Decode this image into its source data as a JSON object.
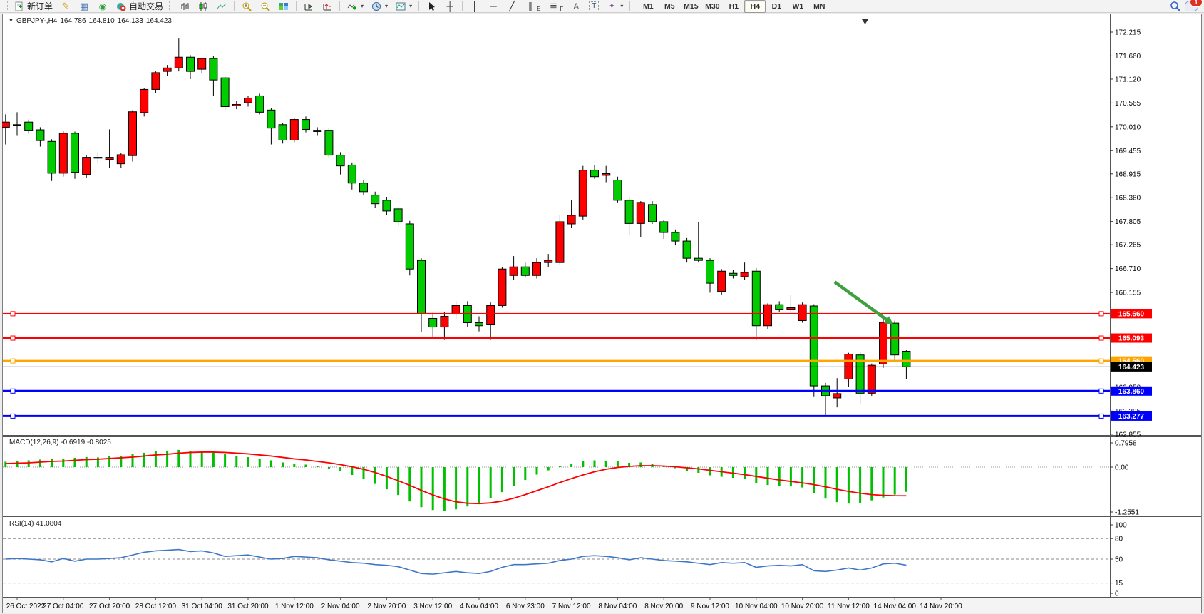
{
  "toolbar": {
    "new_order_label": "新订单",
    "auto_trading_label": "自动交易",
    "timeframe_buttons": [
      "M1",
      "M5",
      "M15",
      "M30",
      "H1",
      "H4",
      "D1",
      "W1",
      "MN"
    ],
    "active_timeframe": "H4",
    "notification_badge": "1"
  },
  "icons": {
    "symbol_dropdown": "▼",
    "crayon": "✎",
    "market_depth": "▦",
    "signals": "◉",
    "crosshair": "┼",
    "vertical_line": "│",
    "horizontal_line": "─",
    "trendline": "╱",
    "channel": "∥",
    "channel_sub": "E",
    "fibonacci": "≣",
    "fibonacci_sub": "F",
    "text_tool": "A",
    "label_tool": "T",
    "arrows_tool": "✦",
    "caret": "▾"
  },
  "chart_title": {
    "dropdown_marker": "▼",
    "symbol_period": "GBPJPY-,H4",
    "open": "164.786",
    "high": "164.810",
    "low": "164.133",
    "close": "164.423"
  },
  "panes": {
    "macd_label": "MACD(12,26,9) -0.6919 -0.8025",
    "rsi_label": "RSI(14) 41.0804"
  },
  "axes": {
    "price_ticks": [
      "172.215",
      "171.660",
      "171.120",
      "170.565",
      "170.010",
      "169.455",
      "168.915",
      "168.360",
      "167.805",
      "167.265",
      "166.710",
      "166.155",
      "163.950",
      "163.395",
      "162.855"
    ],
    "macd_ticks": [
      "0.7958",
      "0.00",
      "-1.2551"
    ],
    "rsi_ticks": [
      "100",
      "80",
      "50",
      "15",
      "0"
    ],
    "time_labels": [
      "26 Oct 2022",
      "27 Oct 04:00",
      "27 Oct 20:00",
      "28 Oct 12:00",
      "31 Oct 04:00",
      "31 Oct 20:00",
      "1 Nov 12:00",
      "2 Nov 04:00",
      "2 Nov 20:00",
      "3 Nov 12:00",
      "4 Nov 04:00",
      "6 Nov 23:00",
      "7 Nov 12:00",
      "8 Nov 04:00",
      "8 Nov 20:00",
      "9 Nov 12:00",
      "10 Nov 04:00",
      "10 Nov 20:00",
      "11 Nov 12:00",
      "14 Nov 04:00",
      "14 Nov 20:00"
    ]
  },
  "price_lines": [
    {
      "price": 165.66,
      "label": "165.660",
      "color": "#FF0000",
      "width": 2
    },
    {
      "price": 165.093,
      "label": "165.093",
      "color": "#FF0000",
      "width": 2
    },
    {
      "price": 164.56,
      "label": "164.560",
      "color": "#FFA500",
      "width": 3
    },
    {
      "price": 163.86,
      "label": "163.860",
      "color": "#0000FF",
      "width": 3
    },
    {
      "price": 163.277,
      "label": "163.277",
      "color": "#0000FF",
      "width": 3
    }
  ],
  "current_price_line": {
    "price": 164.423,
    "label": "164.423",
    "color": "#000000"
  },
  "annotations": {
    "down_arrow": {
      "from_index": 71.8,
      "from_price": 166.4,
      "to_index": 76.9,
      "to_price": 165.4,
      "color": "#3FA03F"
    }
  },
  "chart_data": {
    "type": "candlestick",
    "symbol": "GBPJPY-",
    "timeframe": "H4",
    "up_color": "#FF0000",
    "down_color": "#00CC00",
    "wick_color": "#000000",
    "price_range": [
      162.855,
      172.215
    ],
    "candles": [
      [
        170.0,
        170.3,
        169.6,
        170.12
      ],
      [
        170.05,
        170.35,
        169.8,
        170.06
      ],
      [
        170.12,
        170.18,
        169.85,
        169.93
      ],
      [
        169.94,
        170.0,
        169.55,
        169.69
      ],
      [
        169.67,
        169.72,
        168.75,
        168.93
      ],
      [
        168.93,
        169.92,
        168.85,
        169.86
      ],
      [
        169.86,
        169.9,
        168.8,
        168.95
      ],
      [
        168.9,
        169.35,
        168.82,
        169.3
      ],
      [
        169.3,
        169.42,
        169.18,
        169.28
      ],
      [
        169.25,
        169.95,
        169.05,
        169.3
      ],
      [
        169.15,
        169.4,
        169.05,
        169.36
      ],
      [
        169.34,
        170.4,
        169.2,
        170.36
      ],
      [
        170.34,
        170.92,
        170.25,
        170.88
      ],
      [
        170.88,
        171.3,
        170.8,
        171.27
      ],
      [
        171.3,
        171.45,
        171.2,
        171.38
      ],
      [
        171.38,
        172.08,
        171.3,
        171.63
      ],
      [
        171.63,
        171.68,
        171.12,
        171.3
      ],
      [
        171.35,
        171.62,
        171.25,
        171.6
      ],
      [
        171.6,
        171.65,
        170.72,
        171.1
      ],
      [
        171.15,
        171.2,
        170.4,
        170.48
      ],
      [
        170.5,
        170.62,
        170.42,
        170.53
      ],
      [
        170.57,
        170.72,
        170.48,
        170.68
      ],
      [
        170.73,
        170.78,
        170.3,
        170.35
      ],
      [
        170.4,
        170.45,
        169.6,
        169.98
      ],
      [
        170.06,
        170.1,
        169.62,
        169.7
      ],
      [
        169.7,
        170.22,
        169.65,
        170.18
      ],
      [
        170.18,
        170.25,
        169.88,
        169.95
      ],
      [
        169.93,
        170.0,
        169.8,
        169.9
      ],
      [
        169.93,
        169.98,
        169.3,
        169.35
      ],
      [
        169.35,
        169.42,
        168.9,
        169.1
      ],
      [
        169.12,
        169.18,
        168.55,
        168.7
      ],
      [
        168.7,
        168.78,
        168.42,
        168.5
      ],
      [
        168.42,
        168.5,
        168.12,
        168.22
      ],
      [
        168.3,
        168.38,
        167.95,
        168.05
      ],
      [
        168.1,
        168.15,
        167.7,
        167.8
      ],
      [
        167.75,
        167.82,
        166.55,
        166.7
      ],
      [
        166.9,
        166.95,
        165.23,
        165.66
      ],
      [
        165.55,
        165.68,
        165.1,
        165.35
      ],
      [
        165.35,
        165.7,
        165.05,
        165.6
      ],
      [
        165.65,
        165.95,
        165.55,
        165.85
      ],
      [
        165.85,
        165.95,
        165.35,
        165.45
      ],
      [
        165.45,
        165.6,
        165.25,
        165.38
      ],
      [
        165.4,
        165.92,
        165.05,
        165.85
      ],
      [
        165.85,
        166.75,
        165.8,
        166.7
      ],
      [
        166.55,
        167.0,
        166.45,
        166.75
      ],
      [
        166.75,
        166.85,
        166.5,
        166.55
      ],
      [
        166.55,
        166.95,
        166.48,
        166.85
      ],
      [
        166.85,
        167.05,
        166.75,
        166.9
      ],
      [
        166.85,
        167.95,
        166.8,
        167.8
      ],
      [
        167.75,
        168.3,
        167.65,
        167.95
      ],
      [
        167.93,
        169.1,
        167.85,
        169.0
      ],
      [
        169.0,
        169.12,
        168.8,
        168.85
      ],
      [
        168.88,
        169.1,
        168.72,
        168.92
      ],
      [
        168.77,
        168.85,
        168.25,
        168.3
      ],
      [
        168.3,
        168.38,
        167.5,
        167.76
      ],
      [
        167.76,
        168.28,
        167.45,
        168.25
      ],
      [
        168.2,
        168.28,
        167.75,
        167.8
      ],
      [
        167.8,
        167.85,
        167.4,
        167.55
      ],
      [
        167.55,
        167.62,
        167.25,
        167.35
      ],
      [
        167.35,
        167.42,
        166.85,
        166.95
      ],
      [
        166.95,
        167.8,
        166.85,
        166.9
      ],
      [
        166.9,
        166.95,
        166.15,
        166.37
      ],
      [
        166.18,
        166.7,
        166.1,
        166.65
      ],
      [
        166.6,
        166.68,
        166.48,
        166.55
      ],
      [
        166.52,
        166.85,
        166.45,
        166.62
      ],
      [
        166.65,
        166.72,
        165.05,
        165.38
      ],
      [
        165.38,
        165.9,
        165.3,
        165.87
      ],
      [
        165.87,
        165.95,
        165.7,
        165.75
      ],
      [
        165.75,
        166.1,
        165.65,
        165.8
      ],
      [
        165.5,
        165.92,
        165.45,
        165.87
      ],
      [
        165.84,
        165.88,
        163.72,
        163.98
      ],
      [
        163.98,
        164.05,
        163.3,
        163.75
      ],
      [
        163.7,
        164.16,
        163.48,
        163.8
      ],
      [
        164.14,
        164.75,
        163.95,
        164.72
      ],
      [
        164.7,
        164.78,
        163.55,
        163.81
      ],
      [
        163.81,
        164.5,
        163.75,
        164.46
      ],
      [
        164.49,
        165.57,
        164.4,
        165.46
      ],
      [
        165.44,
        165.5,
        164.55,
        164.7
      ],
      [
        164.786,
        164.81,
        164.133,
        164.423
      ]
    ],
    "indicators": [
      {
        "name": "MACD",
        "params": "12,26,9",
        "current_main": -0.6919,
        "current_signal": -0.8025,
        "range": [
          -1.2551,
          0.7958
        ],
        "histogram_color": "#00C000",
        "signal_color": "#FF0000",
        "histogram": [
          0.15,
          0.17,
          0.19,
          0.21,
          0.24,
          0.22,
          0.26,
          0.28,
          0.27,
          0.3,
          0.32,
          0.36,
          0.4,
          0.44,
          0.46,
          0.48,
          0.46,
          0.44,
          0.41,
          0.37,
          0.32,
          0.28,
          0.24,
          0.19,
          0.13,
          0.1,
          0.07,
          0.03,
          -0.04,
          -0.12,
          -0.22,
          -0.34,
          -0.47,
          -0.62,
          -0.78,
          -0.96,
          -1.12,
          -1.2,
          -1.23,
          -1.18,
          -1.1,
          -1.0,
          -0.87,
          -0.7,
          -0.52,
          -0.36,
          -0.21,
          -0.09,
          0.03,
          0.1,
          0.16,
          0.19,
          0.18,
          0.16,
          0.12,
          0.13,
          0.09,
          0.04,
          -0.03,
          -0.1,
          -0.16,
          -0.23,
          -0.27,
          -0.3,
          -0.33,
          -0.44,
          -0.5,
          -0.52,
          -0.54,
          -0.57,
          -0.72,
          -0.88,
          -0.98,
          -1.02,
          -1.0,
          -0.93,
          -0.85,
          -0.77,
          -0.6919
        ],
        "signal": [
          0.1,
          0.11,
          0.12,
          0.14,
          0.16,
          0.17,
          0.19,
          0.21,
          0.22,
          0.24,
          0.26,
          0.28,
          0.31,
          0.34,
          0.36,
          0.39,
          0.41,
          0.42,
          0.42,
          0.41,
          0.39,
          0.37,
          0.34,
          0.31,
          0.27,
          0.23,
          0.2,
          0.16,
          0.12,
          0.07,
          0.01,
          -0.06,
          -0.15,
          -0.26,
          -0.38,
          -0.51,
          -0.65,
          -0.78,
          -0.89,
          -0.97,
          -1.01,
          -1.02,
          -1.0,
          -0.95,
          -0.87,
          -0.77,
          -0.66,
          -0.55,
          -0.43,
          -0.32,
          -0.22,
          -0.13,
          -0.06,
          -0.01,
          0.02,
          0.04,
          0.04,
          0.03,
          0.01,
          -0.02,
          -0.05,
          -0.09,
          -0.13,
          -0.17,
          -0.21,
          -0.26,
          -0.31,
          -0.36,
          -0.4,
          -0.44,
          -0.49,
          -0.55,
          -0.62,
          -0.68,
          -0.73,
          -0.77,
          -0.79,
          -0.8,
          -0.8025
        ]
      },
      {
        "name": "RSI",
        "params": "14",
        "current": 41.0804,
        "levels": [
          80,
          50,
          15
        ],
        "range": [
          0,
          100
        ],
        "line_color": "#3E76C8",
        "values": [
          50,
          51,
          50,
          49,
          46,
          51,
          47,
          50,
          50,
          51,
          52,
          56,
          60,
          62,
          63,
          64,
          61,
          62,
          59,
          54,
          55,
          56,
          53,
          50,
          51,
          54,
          53,
          52,
          49,
          47,
          45,
          44,
          42,
          41,
          39,
          34,
          29,
          28,
          30,
          32,
          30,
          29,
          32,
          38,
          42,
          42,
          43,
          44,
          48,
          50,
          54,
          55,
          54,
          52,
          49,
          52,
          50,
          48,
          47,
          46,
          44,
          42,
          45,
          44,
          45,
          38,
          40,
          41,
          40,
          42,
          33,
          32,
          34,
          37,
          34,
          37,
          43,
          44,
          41.08
        ]
      }
    ]
  }
}
